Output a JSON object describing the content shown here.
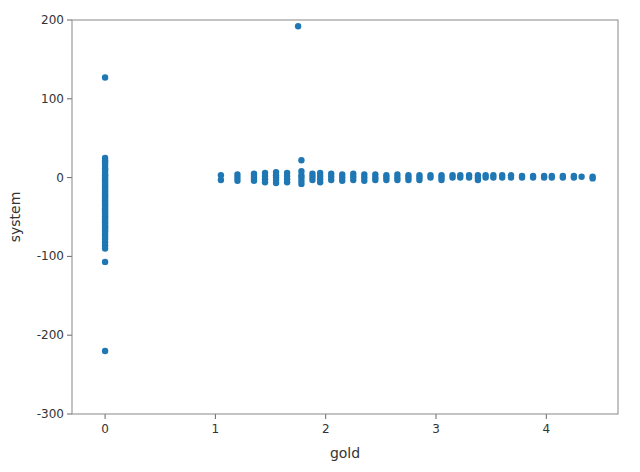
{
  "chart_data": {
    "type": "scatter",
    "xlabel": "gold",
    "ylabel": "system",
    "xlim": [
      -0.3,
      4.65
    ],
    "ylim": [
      -300,
      200
    ],
    "xticks": [
      0,
      1,
      2,
      3,
      4
    ],
    "yticks": [
      -300,
      -200,
      -100,
      0,
      100,
      200
    ],
    "color": "#1f77b4",
    "grid": false,
    "x": [
      0,
      0,
      0,
      0,
      0,
      0,
      0,
      0,
      0,
      0,
      0,
      0,
      0,
      0,
      0,
      0,
      0,
      0,
      0,
      0,
      0,
      0,
      0,
      0,
      0,
      0,
      0,
      0,
      0,
      0,
      0,
      0,
      0,
      0,
      0,
      0,
      0,
      0,
      0,
      0,
      0,
      0,
      0,
      0,
      0,
      0,
      0,
      0,
      0,
      0,
      0,
      0,
      0,
      0,
      0,
      1.05,
      1.05,
      1.2,
      1.2,
      1.2,
      1.35,
      1.35,
      1.35,
      1.35,
      1.45,
      1.45,
      1.45,
      1.45,
      1.55,
      1.55,
      1.55,
      1.55,
      1.55,
      1.65,
      1.65,
      1.65,
      1.65,
      1.75,
      1.78,
      1.78,
      1.78,
      1.78,
      1.78,
      1.78,
      1.88,
      1.88,
      1.88,
      1.95,
      1.95,
      1.95,
      1.95,
      2.05,
      2.05,
      2.05,
      2.15,
      2.15,
      2.15,
      2.25,
      2.25,
      2.25,
      2.35,
      2.35,
      2.35,
      2.45,
      2.45,
      2.45,
      2.55,
      2.55,
      2.55,
      2.65,
      2.65,
      2.65,
      2.75,
      2.75,
      2.75,
      2.85,
      2.85,
      2.85,
      2.95,
      2.95,
      3.05,
      3.05,
      3.05,
      3.15,
      3.15,
      3.22,
      3.22,
      3.3,
      3.3,
      3.38,
      3.38,
      3.38,
      3.45,
      3.45,
      3.52,
      3.52,
      3.6,
      3.6,
      3.68,
      3.68,
      3.78,
      3.78,
      3.88,
      3.88,
      3.98,
      3.98,
      4.05,
      4.05,
      4.15,
      4.15,
      4.25,
      4.25,
      4.32,
      4.42,
      4.42
    ],
    "values": [
      127,
      25,
      22,
      20,
      18,
      15,
      12,
      10,
      8,
      5,
      3,
      1,
      -1,
      -3,
      -5,
      -7,
      -9,
      -11,
      -13,
      -15,
      -17,
      -19,
      -21,
      -23,
      -25,
      -27,
      -29,
      -31,
      -33,
      -35,
      -37,
      -39,
      -41,
      -43,
      -45,
      -47,
      -49,
      -51,
      -53,
      -55,
      -57,
      -59,
      -61,
      -63,
      -65,
      -67,
      -69,
      -72,
      -75,
      -78,
      -82,
      -86,
      -90,
      -107,
      -220,
      3,
      -3,
      4,
      0,
      -4,
      5,
      2,
      -1,
      -4,
      6,
      2,
      -2,
      -6,
      7,
      3,
      0,
      -3,
      -7,
      6,
      2,
      -2,
      -6,
      192,
      22,
      8,
      3,
      0,
      -4,
      -8,
      5,
      1,
      -3,
      6,
      2,
      -2,
      -6,
      5,
      1,
      -3,
      4,
      0,
      -4,
      5,
      1,
      -3,
      4,
      0,
      -4,
      4,
      0,
      -3,
      3,
      0,
      -3,
      4,
      0,
      -3,
      3,
      0,
      -3,
      3,
      0,
      -3,
      3,
      0,
      3,
      0,
      -3,
      3,
      0,
      3,
      0,
      3,
      0,
      3,
      0,
      -3,
      3,
      0,
      3,
      0,
      3,
      0,
      3,
      0,
      2,
      0,
      2,
      0,
      2,
      0,
      2,
      0,
      2,
      0,
      2,
      0,
      1,
      1,
      -1
    ]
  }
}
